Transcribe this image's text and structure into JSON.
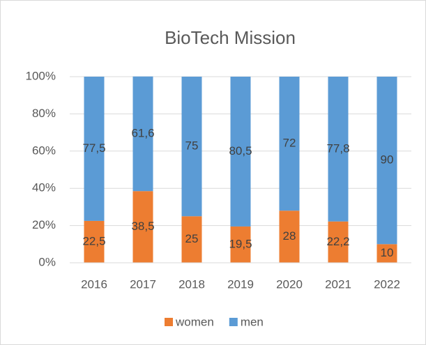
{
  "chart_data": {
    "type": "stacked_bar",
    "title": "BioTech Mission",
    "categories": [
      "2016",
      "2017",
      "2018",
      "2019",
      "2020",
      "2021",
      "2022"
    ],
    "series": [
      {
        "name": "women",
        "color": "#ED7D31",
        "values": [
          22.5,
          38.5,
          25,
          19.5,
          28,
          22.2,
          10
        ],
        "value_labels": [
          "22,5",
          "38,5",
          "25",
          "19,5",
          "28",
          "22,2",
          "10"
        ]
      },
      {
        "name": "men",
        "color": "#5B9BD5",
        "values": [
          77.5,
          61.6,
          75,
          80.5,
          72,
          77.8,
          90
        ],
        "value_labels": [
          "77,5",
          "61,6",
          "75",
          "80,5",
          "72",
          "77,8",
          "90"
        ]
      }
    ],
    "ylim": [
      0,
      100
    ],
    "yticks": [
      {
        "value": 0,
        "label": "0%"
      },
      {
        "value": 20,
        "label": "20%"
      },
      {
        "value": 40,
        "label": "40%"
      },
      {
        "value": 60,
        "label": "60%"
      },
      {
        "value": 80,
        "label": "80%"
      },
      {
        "value": 100,
        "label": "100%"
      }
    ],
    "grid": true,
    "legend": "bottom"
  }
}
